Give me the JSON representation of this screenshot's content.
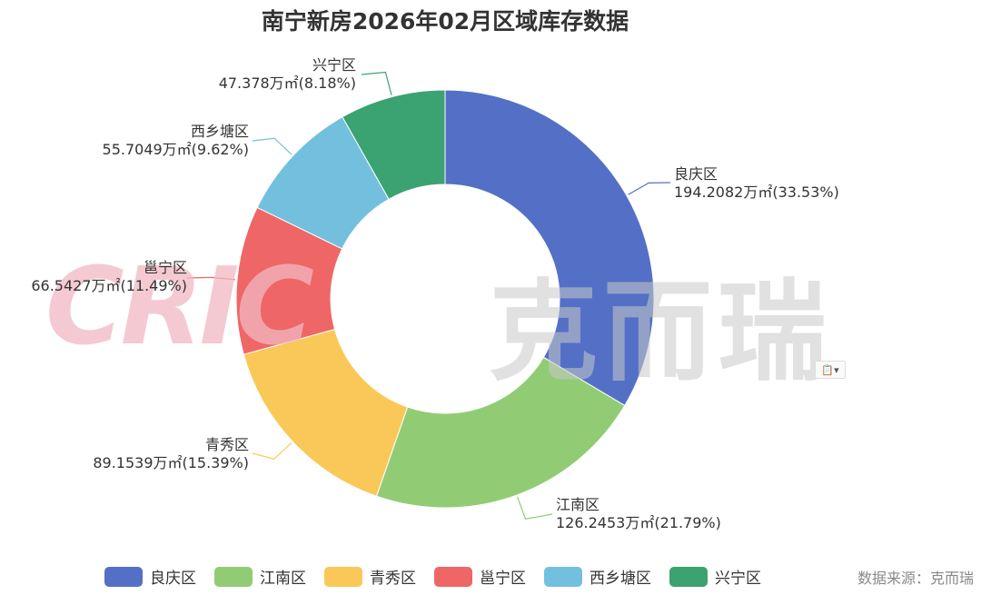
{
  "title": "南宁新房2026年02月区域库存数据",
  "source": "数据来源：克而瑞",
  "watermark": {
    "latin": "CRIC",
    "cjk": "克而瑞"
  },
  "chart_data": {
    "type": "pie",
    "title": "南宁新房2026年02月区域库存数据",
    "unit": "万㎡",
    "donut": true,
    "legend_position": "bottom",
    "series": [
      {
        "name": "良庆区",
        "value": 194.2082,
        "percent": 33.53,
        "color": "#5470c6",
        "label_name": "良庆区",
        "label_value": "194.2082万㎡(33.53%)"
      },
      {
        "name": "江南区",
        "value": 126.2453,
        "percent": 21.79,
        "color": "#91cc75",
        "label_name": "江南区",
        "label_value": "126.2453万㎡(21.79%)"
      },
      {
        "name": "青秀区",
        "value": 89.1539,
        "percent": 15.39,
        "color": "#fac858",
        "label_name": "青秀区",
        "label_value": "89.1539万㎡(15.39%)"
      },
      {
        "name": "邕宁区",
        "value": 66.5427,
        "percent": 11.49,
        "color": "#ee6666",
        "label_name": "邕宁区",
        "label_value": "66.5427万㎡(11.49%)"
      },
      {
        "name": "西乡塘区",
        "value": 55.7049,
        "percent": 9.62,
        "color": "#73c0de",
        "label_name": "西乡塘区",
        "label_value": "55.7049万㎡(9.62%)"
      },
      {
        "name": "兴宁区",
        "value": 47.378,
        "percent": 8.18,
        "color": "#3ba272",
        "label_name": "兴宁区",
        "label_value": "47.378万㎡(8.18%)"
      }
    ]
  },
  "legend": [
    {
      "label": "良庆区",
      "color": "#5470c6"
    },
    {
      "label": "江南区",
      "color": "#91cc75"
    },
    {
      "label": "青秀区",
      "color": "#fac858"
    },
    {
      "label": "邕宁区",
      "color": "#ee6666"
    },
    {
      "label": "西乡塘区",
      "color": "#73c0de"
    },
    {
      "label": "兴宁区",
      "color": "#3ba272"
    }
  ]
}
